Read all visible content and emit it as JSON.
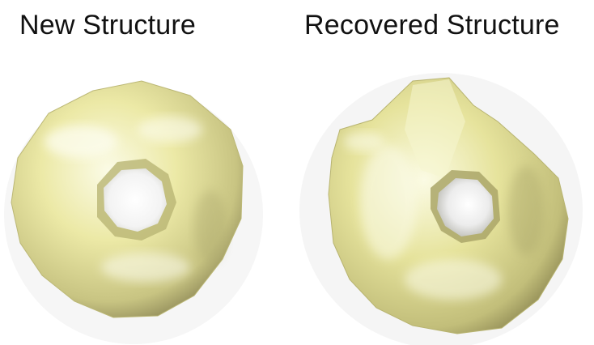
{
  "panels": [
    {
      "title": "New Structure",
      "surface_color": "#ece9a6",
      "shadow_color": "#9a9560",
      "highlight_color": "#fbfbe6"
    },
    {
      "title": "Recovered Structure",
      "surface_color": "#e6e39c",
      "shadow_color": "#938e57",
      "highlight_color": "#fbfbe4"
    }
  ]
}
